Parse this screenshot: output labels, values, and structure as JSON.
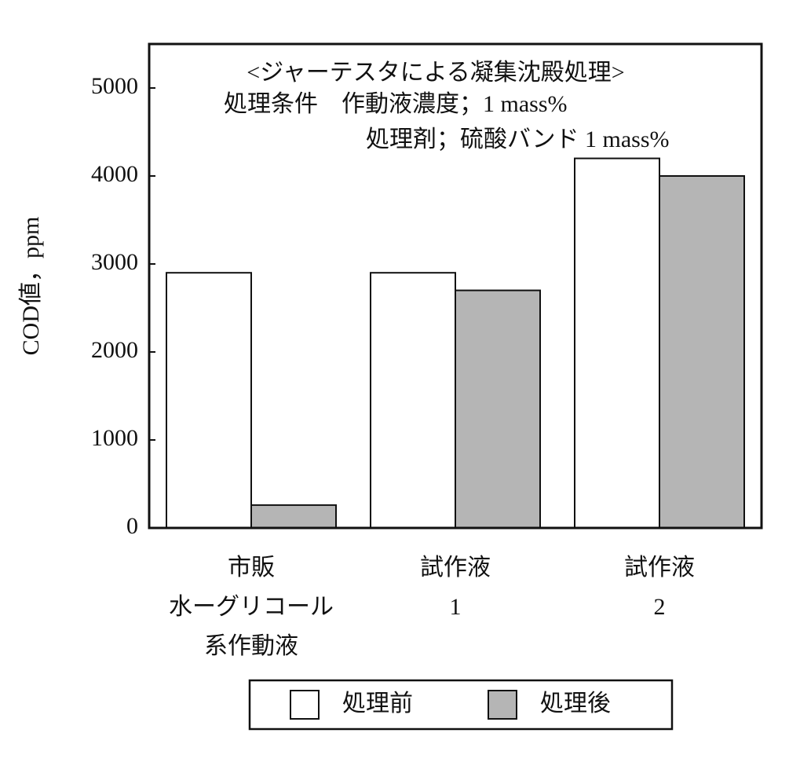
{
  "chart_data": {
    "type": "bar",
    "annotations": [
      "<ジャーテスタによる凝集沈殿処理>",
      "処理条件　作動液濃度；1 mass%",
      "処理剤；硫酸バンド 1 mass%"
    ],
    "y_label": "COD値，ppm",
    "categories": [
      [
        "市販",
        "水ーグリコール",
        "系作動液"
      ],
      [
        "試作液",
        "1"
      ],
      [
        "試作液",
        "2"
      ]
    ],
    "series": [
      {
        "name": "処理前",
        "color": "#ffffff",
        "values": [
          2900,
          2900,
          4200
        ]
      },
      {
        "name": "処理後",
        "color": "#b5b5b5",
        "values": [
          260,
          2700,
          4000
        ]
      }
    ],
    "ylim": [
      0,
      5500
    ],
    "yticks": [
      0,
      1000,
      2000,
      3000,
      4000,
      5000
    ],
    "legend": "bottom"
  }
}
